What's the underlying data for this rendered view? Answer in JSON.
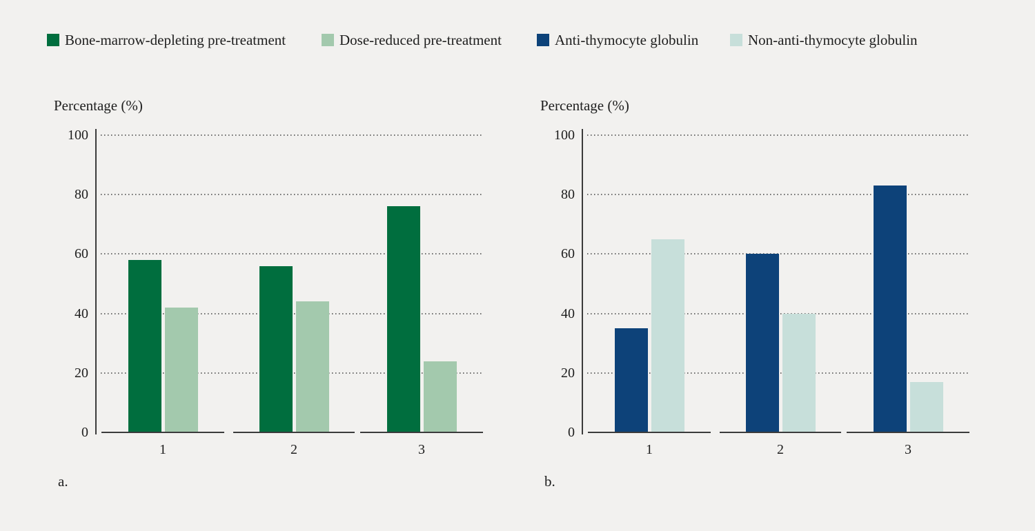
{
  "page": {
    "background_color": "#F2F1EF",
    "text_color": "#1E1E1E"
  },
  "legend": {
    "items": [
      {
        "label": "Bone-marrow-depleting pre-treatment",
        "color": "#006E3E"
      },
      {
        "label": "Dose-reduced pre-treatment",
        "color": "#A3C9AD"
      },
      {
        "label": "Anti-thymocyte globulin",
        "color": "#0D4279"
      },
      {
        "label": "Non-anti-thymocyte globulin",
        "color": "#C7DFDA"
      }
    ]
  },
  "chart_data": [
    {
      "type": "bar",
      "panel_label": "a.",
      "ylabel": "Percentage (%)",
      "categories": [
        "1",
        "2",
        "3"
      ],
      "yticks": [
        0,
        20,
        40,
        60,
        80,
        100
      ],
      "ylim": [
        0,
        100
      ],
      "grid": "dotted-horizontal",
      "legend_position": "top-shared",
      "series": [
        {
          "name": "Bone-marrow-depleting pre-treatment",
          "color": "#006E3E",
          "values": [
            58,
            56,
            76
          ]
        },
        {
          "name": "Dose-reduced pre-treatment",
          "color": "#A3C9AD",
          "values": [
            42,
            44,
            24
          ]
        }
      ]
    },
    {
      "type": "bar",
      "panel_label": "b.",
      "ylabel": "Percentage (%)",
      "categories": [
        "1",
        "2",
        "3"
      ],
      "yticks": [
        0,
        20,
        40,
        60,
        80,
        100
      ],
      "ylim": [
        0,
        100
      ],
      "grid": "dotted-horizontal",
      "legend_position": "top-shared",
      "series": [
        {
          "name": "Anti-thymocyte globulin",
          "color": "#0D4279",
          "values": [
            35,
            60,
            83
          ]
        },
        {
          "name": "Non-anti-thymocyte globulin",
          "color": "#C7DFDA",
          "values": [
            65,
            40,
            17
          ]
        }
      ]
    }
  ]
}
